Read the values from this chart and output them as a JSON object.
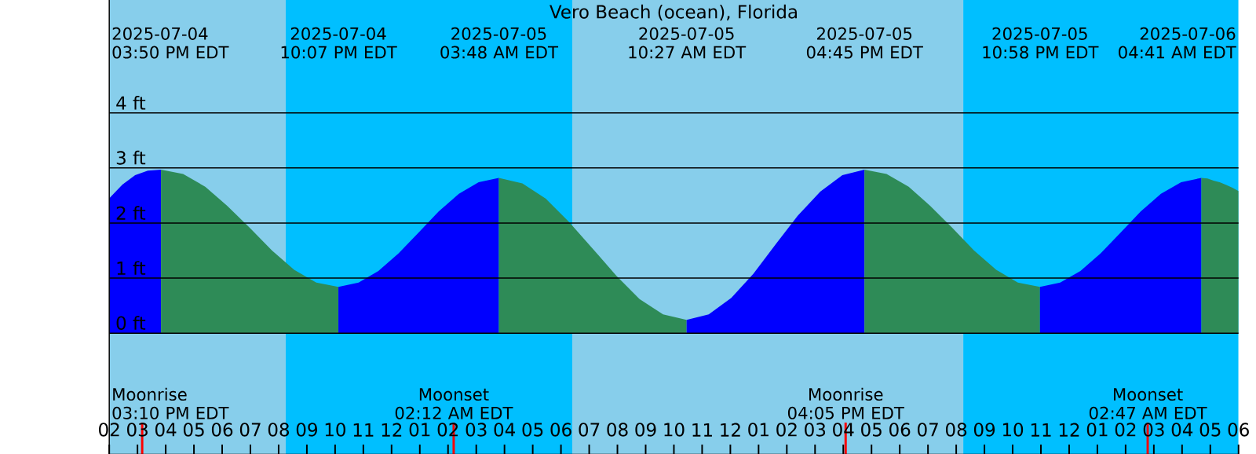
{
  "chart_data": {
    "type": "area",
    "title": "Vero Beach (ocean), Florida",
    "xlim": [
      "2025-07-04T14:00",
      "2025-07-06T06:00"
    ],
    "ylim": [
      -2.2,
      6.05
    ],
    "grid": "y",
    "xticks": [
      {
        "value": "2025-07-04T14:00",
        "label": "02"
      },
      {
        "value": "2025-07-04T15:00",
        "label": "03"
      },
      {
        "value": "2025-07-04T16:00",
        "label": "04"
      },
      {
        "value": "2025-07-04T17:00",
        "label": "05"
      },
      {
        "value": "2025-07-04T18:00",
        "label": "06"
      },
      {
        "value": "2025-07-04T19:00",
        "label": "07"
      },
      {
        "value": "2025-07-04T20:00",
        "label": "08"
      },
      {
        "value": "2025-07-04T21:00",
        "label": "09"
      },
      {
        "value": "2025-07-04T22:00",
        "label": "10"
      },
      {
        "value": "2025-07-04T23:00",
        "label": "11"
      },
      {
        "value": "2025-07-05T00:00",
        "label": "12"
      },
      {
        "value": "2025-07-05T01:00",
        "label": "01"
      },
      {
        "value": "2025-07-05T02:00",
        "label": "02"
      },
      {
        "value": "2025-07-05T03:00",
        "label": "03"
      },
      {
        "value": "2025-07-05T04:00",
        "label": "04"
      },
      {
        "value": "2025-07-05T05:00",
        "label": "05"
      },
      {
        "value": "2025-07-05T06:00",
        "label": "06"
      },
      {
        "value": "2025-07-05T07:00",
        "label": "07"
      },
      {
        "value": "2025-07-05T08:00",
        "label": "08"
      },
      {
        "value": "2025-07-05T09:00",
        "label": "09"
      },
      {
        "value": "2025-07-05T10:00",
        "label": "10"
      },
      {
        "value": "2025-07-05T11:00",
        "label": "11"
      },
      {
        "value": "2025-07-05T12:00",
        "label": "12"
      },
      {
        "value": "2025-07-05T13:00",
        "label": "01"
      },
      {
        "value": "2025-07-05T14:00",
        "label": "02"
      },
      {
        "value": "2025-07-05T15:00",
        "label": "03"
      },
      {
        "value": "2025-07-05T16:00",
        "label": "04"
      },
      {
        "value": "2025-07-05T17:00",
        "label": "05"
      },
      {
        "value": "2025-07-05T18:00",
        "label": "06"
      },
      {
        "value": "2025-07-05T19:00",
        "label": "07"
      },
      {
        "value": "2025-07-05T20:00",
        "label": "08"
      },
      {
        "value": "2025-07-05T21:00",
        "label": "09"
      },
      {
        "value": "2025-07-05T22:00",
        "label": "10"
      },
      {
        "value": "2025-07-05T23:00",
        "label": "11"
      },
      {
        "value": "2025-07-06T00:00",
        "label": "12"
      },
      {
        "value": "2025-07-06T01:00",
        "label": "01"
      },
      {
        "value": "2025-07-06T02:00",
        "label": "02"
      },
      {
        "value": "2025-07-06T03:00",
        "label": "03"
      },
      {
        "value": "2025-07-06T04:00",
        "label": "04"
      },
      {
        "value": "2025-07-06T05:00",
        "label": "05"
      },
      {
        "value": "2025-07-06T06:00",
        "label": "06"
      }
    ],
    "yticks": [
      {
        "value": 0,
        "label": "0 ft"
      },
      {
        "value": 1,
        "label": "1 ft"
      },
      {
        "value": 2,
        "label": "2 ft"
      },
      {
        "value": 3,
        "label": "3 ft"
      },
      {
        "value": 4,
        "label": "4 ft"
      }
    ],
    "bands": [
      {
        "axis": "x",
        "from": "2025-07-04T14:00",
        "to": "2025-07-04T20:15",
        "color": "#87ceeb"
      },
      {
        "axis": "x",
        "from": "2025-07-04T20:15",
        "to": "2025-07-05T06:24",
        "color": "#00bfff"
      },
      {
        "axis": "x",
        "from": "2025-07-05T06:24",
        "to": "2025-07-05T20:15",
        "color": "#87ceeb"
      },
      {
        "axis": "x",
        "from": "2025-07-05T20:15",
        "to": "2025-07-06T06:00",
        "color": "#00bfff"
      }
    ],
    "series": [
      {
        "color": "#0000ff",
        "x": [
          "2025-07-04T14:00",
          "2025-07-04T14:28",
          "2025-07-04T14:55",
          "2025-07-04T15:22",
          "2025-07-04T15:50"
        ],
        "values": [
          2.45,
          2.7,
          2.87,
          2.95,
          2.97
        ]
      },
      {
        "color": "#2e8b57",
        "x": [
          "2025-07-04T15:50",
          "2025-07-04T16:37",
          "2025-07-04T17:24",
          "2025-07-04T18:11",
          "2025-07-04T18:59",
          "2025-07-04T19:46",
          "2025-07-04T20:33",
          "2025-07-04T21:20",
          "2025-07-04T22:07"
        ],
        "values": [
          2.97,
          2.89,
          2.66,
          2.31,
          1.91,
          1.5,
          1.15,
          0.92,
          0.84
        ]
      },
      {
        "color": "#0000ff",
        "x": [
          "2025-07-04T22:07",
          "2025-07-04T22:50",
          "2025-07-04T23:32",
          "2025-07-05T00:15",
          "2025-07-05T00:58",
          "2025-07-05T01:40",
          "2025-07-05T02:23",
          "2025-07-05T03:05",
          "2025-07-05T03:48"
        ],
        "values": [
          0.84,
          0.92,
          1.13,
          1.45,
          1.83,
          2.21,
          2.53,
          2.74,
          2.82
        ]
      },
      {
        "color": "#2e8b57",
        "x": [
          "2025-07-05T03:48",
          "2025-07-05T04:38",
          "2025-07-05T05:28",
          "2025-07-05T06:17",
          "2025-07-05T07:08",
          "2025-07-05T07:58",
          "2025-07-05T08:47",
          "2025-07-05T09:37",
          "2025-07-05T10:27"
        ],
        "values": [
          2.82,
          2.72,
          2.44,
          2.02,
          1.53,
          1.04,
          0.62,
          0.34,
          0.24
        ]
      },
      {
        "color": "#0000ff",
        "x": [
          "2025-07-05T10:27",
          "2025-07-05T11:14",
          "2025-07-05T12:02",
          "2025-07-05T12:49",
          "2025-07-05T13:36",
          "2025-07-05T14:23",
          "2025-07-05T15:11",
          "2025-07-05T15:58",
          "2025-07-05T16:45"
        ],
        "values": [
          0.24,
          0.34,
          0.64,
          1.08,
          1.61,
          2.13,
          2.57,
          2.87,
          2.97
        ]
      },
      {
        "color": "#2e8b57",
        "x": [
          "2025-07-05T16:45",
          "2025-07-05T17:32",
          "2025-07-05T18:19",
          "2025-07-05T19:05",
          "2025-07-05T19:52",
          "2025-07-05T20:38",
          "2025-07-05T21:25",
          "2025-07-05T22:11",
          "2025-07-05T22:58"
        ],
        "values": [
          2.97,
          2.89,
          2.66,
          2.31,
          1.91,
          1.5,
          1.15,
          0.92,
          0.84
        ]
      },
      {
        "color": "#0000ff",
        "x": [
          "2025-07-05T22:58",
          "2025-07-05T23:41",
          "2025-07-06T00:24",
          "2025-07-06T01:07",
          "2025-07-06T01:50",
          "2025-07-06T02:32",
          "2025-07-06T03:15",
          "2025-07-06T03:58",
          "2025-07-06T04:41"
        ],
        "values": [
          0.84,
          0.92,
          1.13,
          1.45,
          1.83,
          2.21,
          2.53,
          2.74,
          2.82
        ]
      },
      {
        "color": "#2e8b57",
        "x": [
          "2025-07-06T04:41",
          "2025-07-06T04:54",
          "2025-07-06T05:07",
          "2025-07-06T05:20",
          "2025-07-06T05:34",
          "2025-07-06T05:47",
          "2025-07-06T06:00"
        ],
        "values": [
          2.82,
          2.81,
          2.77,
          2.74,
          2.69,
          2.64,
          2.58
        ]
      }
    ],
    "ref_lines": [
      {
        "axis": "x",
        "value": "2025-07-04T15:10",
        "label": "Moonrise 03:10 PM EDT",
        "color": "#ff0000"
      },
      {
        "axis": "x",
        "value": "2025-07-05T02:12",
        "label": "Moonset 02:12 AM EDT",
        "color": "#ff0000"
      },
      {
        "axis": "x",
        "value": "2025-07-05T16:05",
        "label": "Moonrise 04:05 PM EDT",
        "color": "#ff0000"
      },
      {
        "axis": "x",
        "value": "2025-07-06T02:47",
        "label": "Moonset 02:47 AM EDT",
        "color": "#ff0000"
      }
    ],
    "annotations": [
      "2025-07-04 03:50 PM EDT",
      "2025-07-04 10:07 PM EDT",
      "2025-07-05 03:48 AM EDT",
      "2025-07-05 10:27 AM EDT",
      "2025-07-05 04:45 PM EDT",
      "2025-07-05 10:58 PM EDT",
      "2025-07-06 04:41 AM EDT"
    ]
  }
}
